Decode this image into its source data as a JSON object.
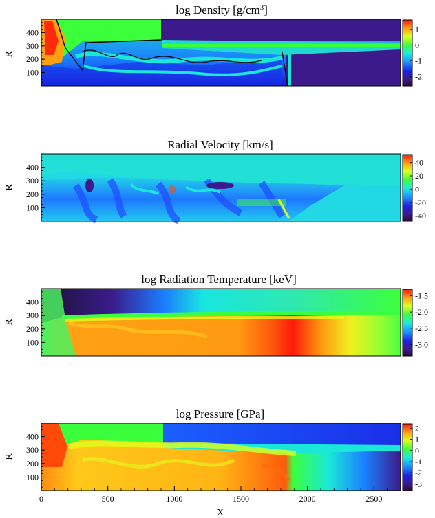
{
  "chart_data": [
    {
      "type": "heatmap",
      "title": "log Density [g/cm",
      "title_sup": "3",
      "title_end": "]",
      "xlabel": "",
      "ylabel": "R",
      "xlim": [
        0,
        2700
      ],
      "ylim": [
        0,
        500
      ],
      "yticks": [
        100,
        200,
        300,
        400
      ],
      "xticks": [],
      "colorbar": {
        "range": [
          -2.6,
          1.6
        ],
        "ticks": [
          1,
          0,
          -1,
          -2
        ]
      }
    },
    {
      "type": "heatmap",
      "title": "Radial Velocity [km/s]",
      "xlabel": "",
      "ylabel": "R",
      "xlim": [
        0,
        2700
      ],
      "ylim": [
        0,
        500
      ],
      "yticks": [
        100,
        200,
        300,
        400
      ],
      "xticks": [],
      "colorbar": {
        "range": [
          -48,
          52
        ],
        "ticks": [
          40,
          20,
          0,
          -20,
          -40
        ]
      }
    },
    {
      "type": "heatmap",
      "title": "log Radiation Temperature [keV]",
      "xlabel": "",
      "ylabel": "R",
      "xlim": [
        0,
        2700
      ],
      "ylim": [
        0,
        500
      ],
      "yticks": [
        100,
        200,
        300,
        400
      ],
      "xticks": [],
      "colorbar": {
        "range": [
          -3.35,
          -1.3
        ],
        "ticks": [
          "-1.5",
          "-2.0",
          "-2.5",
          "-3.0"
        ]
      }
    },
    {
      "type": "heatmap",
      "title": "log Pressure [GPa]",
      "xlabel": "X",
      "ylabel": "R",
      "xlim": [
        0,
        2700
      ],
      "ylim": [
        0,
        500
      ],
      "yticks": [
        100,
        200,
        300,
        400
      ],
      "xticks": [
        0,
        500,
        1000,
        1500,
        2000,
        2500
      ],
      "colorbar": {
        "range": [
          -3.6,
          2.4
        ],
        "ticks": [
          2,
          1,
          0,
          -1,
          -2,
          -3
        ]
      }
    }
  ]
}
